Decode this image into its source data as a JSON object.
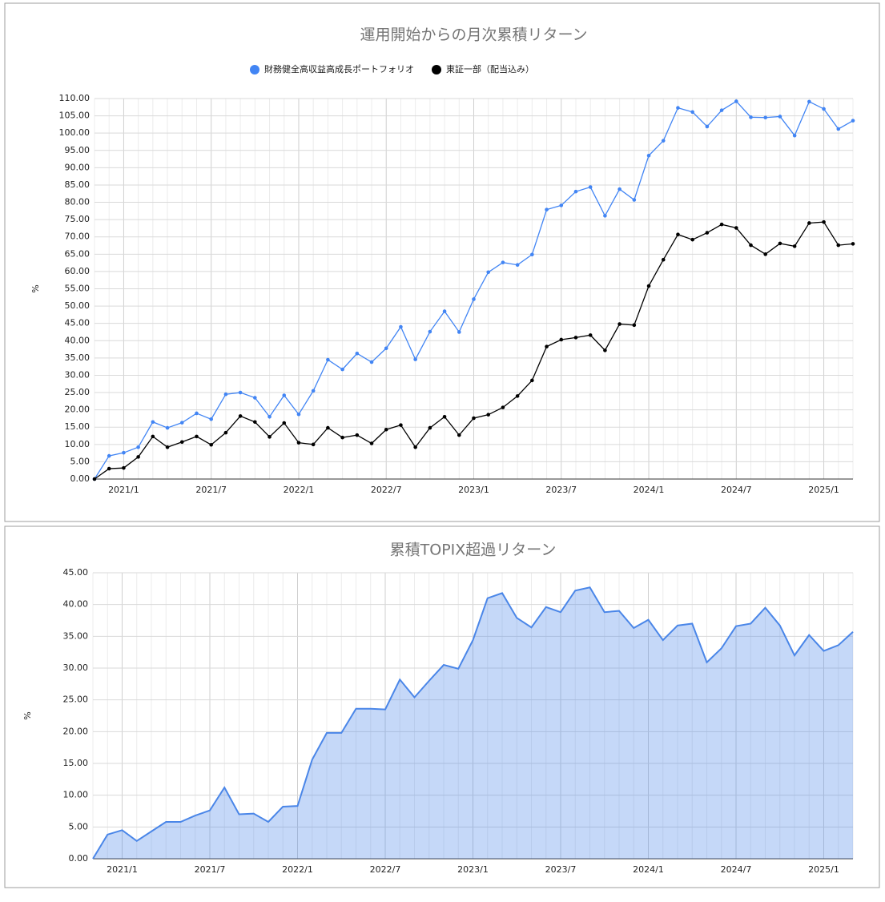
{
  "chart_data": [
    {
      "type": "line",
      "title": "運用開始からの月次累積リターン",
      "y_label": "%",
      "legend": "top",
      "grid": true,
      "categories": [
        null,
        null,
        "2021/1",
        null,
        null,
        null,
        null,
        null,
        "2021/7",
        null,
        null,
        null,
        null,
        null,
        "2022/1",
        null,
        null,
        null,
        null,
        null,
        "2022/7",
        null,
        null,
        null,
        null,
        null,
        "2023/1",
        null,
        null,
        null,
        null,
        null,
        "2023/7",
        null,
        null,
        null,
        null,
        null,
        "2024/1",
        null,
        null,
        null,
        null,
        null,
        "2024/7",
        null,
        null,
        null,
        null,
        null,
        "2025/1",
        null,
        null
      ],
      "series": [
        {
          "name": "財務健全高収益高成長ポートフォリオ",
          "color": "#4285f4",
          "values": [
            0,
            6.7,
            7.6,
            9.2,
            16.5,
            14.8,
            16.3,
            19.0,
            17.3,
            24.5,
            25.0,
            23.5,
            18.0,
            24.2,
            18.7,
            25.5,
            34.5,
            31.7,
            36.3,
            33.8,
            37.8,
            44.0,
            34.6,
            42.6,
            48.5,
            42.5,
            52.0,
            59.8,
            62.6,
            61.9,
            64.9,
            77.9,
            79.1,
            83.1,
            84.4,
            76.1,
            83.8,
            80.7,
            93.5,
            97.8,
            107.3,
            106.1,
            101.9,
            106.6,
            109.2,
            104.6,
            104.5,
            104.8,
            99.3,
            109.1,
            107.0,
            101.2,
            103.6
          ]
        },
        {
          "name": "東証一部（配当込み）",
          "color": "#000000",
          "values": [
            0,
            3.0,
            3.2,
            6.4,
            12.3,
            9.2,
            10.7,
            12.3,
            9.9,
            13.4,
            18.2,
            16.5,
            12.2,
            16.2,
            10.5,
            10.0,
            14.8,
            12.0,
            12.7,
            10.3,
            14.3,
            15.6,
            9.2,
            14.8,
            18.0,
            12.7,
            17.6,
            18.6,
            20.7,
            24.0,
            28.5,
            38.3,
            40.3,
            40.9,
            41.6,
            37.2,
            44.8,
            44.5,
            55.8,
            63.4,
            70.7,
            69.2,
            71.2,
            73.6,
            72.6,
            67.6,
            65.0,
            68.1,
            67.3,
            74.0,
            74.3,
            67.6,
            68.0
          ]
        }
      ],
      "ylim": [
        0,
        110
      ],
      "yticks": [
        {
          "value": 0,
          "label": "0.00"
        },
        {
          "value": 5,
          "label": "5.00"
        },
        {
          "value": 10,
          "label": "10.00"
        },
        {
          "value": 15,
          "label": "15.00"
        },
        {
          "value": 20,
          "label": "20.00"
        },
        {
          "value": 25,
          "label": "25.00"
        },
        {
          "value": 30,
          "label": "30.00"
        },
        {
          "value": 35,
          "label": "35.00"
        },
        {
          "value": 40,
          "label": "40.00"
        },
        {
          "value": 45,
          "label": "45.00"
        },
        {
          "value": 50,
          "label": "50.00"
        },
        {
          "value": 55,
          "label": "55.00"
        },
        {
          "value": 60,
          "label": "60.00"
        },
        {
          "value": 65,
          "label": "65.00"
        },
        {
          "value": 70,
          "label": "70.00"
        },
        {
          "value": 75,
          "label": "75.00"
        },
        {
          "value": 80,
          "label": "80.00"
        },
        {
          "value": 85,
          "label": "85.00"
        },
        {
          "value": 90,
          "label": "90.00"
        },
        {
          "value": 95,
          "label": "95.00"
        },
        {
          "value": 100,
          "label": "100.00"
        },
        {
          "value": 105,
          "label": "105.00"
        },
        {
          "value": 110,
          "label": "110.00"
        }
      ]
    },
    {
      "type": "area",
      "title": "累積TOPIX超過リターン",
      "y_label": "%",
      "grid": true,
      "categories": [
        null,
        null,
        "2021/1",
        null,
        null,
        null,
        null,
        null,
        "2021/7",
        null,
        null,
        null,
        null,
        null,
        "2022/1",
        null,
        null,
        null,
        null,
        null,
        "2022/7",
        null,
        null,
        null,
        null,
        null,
        "2023/1",
        null,
        null,
        null,
        null,
        null,
        "2023/7",
        null,
        null,
        null,
        null,
        null,
        "2024/1",
        null,
        null,
        null,
        null,
        null,
        "2024/7",
        null,
        null,
        null,
        null,
        null,
        "2025/1",
        null,
        null
      ],
      "series": [
        {
          "color": "#4a86e8",
          "values": [
            0,
            3.8,
            4.5,
            2.8,
            4.3,
            5.8,
            5.8,
            6.8,
            7.6,
            11.2,
            7.0,
            7.1,
            5.8,
            8.2,
            8.3,
            15.6,
            19.8,
            19.8,
            23.6,
            23.6,
            23.5,
            28.2,
            25.4,
            28.0,
            30.5,
            29.9,
            34.4,
            41.0,
            41.8,
            37.9,
            36.4,
            39.6,
            38.8,
            42.2,
            42.7,
            38.8,
            39.0,
            36.3,
            37.6,
            34.4,
            36.7,
            37.0,
            30.9,
            33.1,
            36.6,
            37.0,
            39.5,
            36.7,
            32.0,
            35.2,
            32.7,
            33.6,
            35.7
          ]
        }
      ],
      "ylim": [
        0,
        45
      ],
      "yticks": [
        {
          "value": 0,
          "label": "0.00"
        },
        {
          "value": 5,
          "label": "5.00"
        },
        {
          "value": 10,
          "label": "10.00"
        },
        {
          "value": 15,
          "label": "15.00"
        },
        {
          "value": 20,
          "label": "20.00"
        },
        {
          "value": 25,
          "label": "25.00"
        },
        {
          "value": 30,
          "label": "30.00"
        },
        {
          "value": 35,
          "label": "35.00"
        },
        {
          "value": 40,
          "label": "40.00"
        },
        {
          "value": 45,
          "label": "45.00"
        }
      ]
    }
  ]
}
